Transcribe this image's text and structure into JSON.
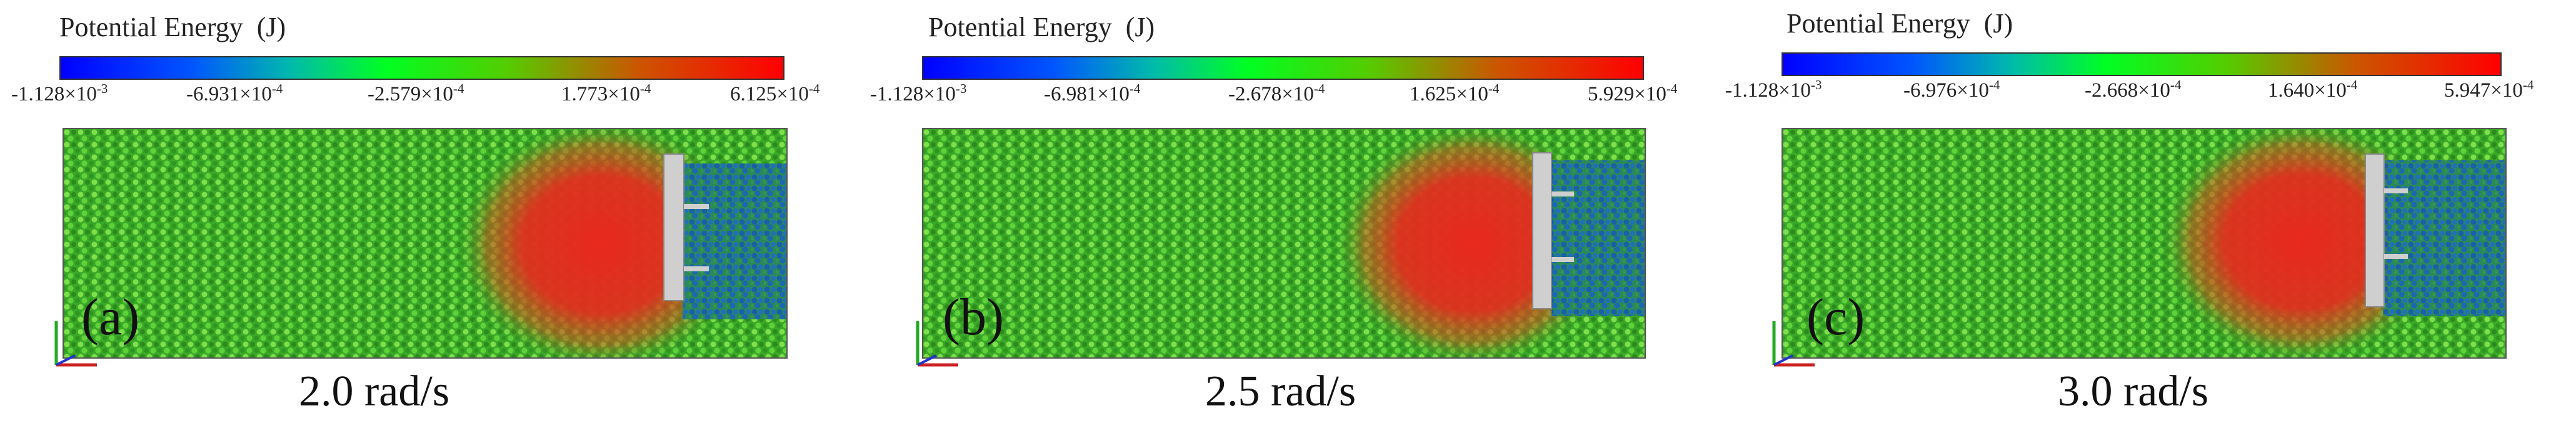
{
  "colorbar_gradient": [
    "#0000ff",
    "#0066ff",
    "#00cc99",
    "#00ff00",
    "#66cc00",
    "#cc6600",
    "#ff0000"
  ],
  "particle_colors": {
    "green": "#2f9e1f",
    "green_light": "#6fdc3a",
    "red": "#e8281e",
    "blue": "#1a5fa8",
    "tool": "#c9c9c9"
  },
  "panels": [
    {
      "title": "Potential Energy  (J)",
      "ticks": [
        "-1.128×10",
        "-6.931×10",
        "-2.579×10",
        "1.773×10",
        "6.125×10"
      ],
      "tick_exps": [
        "-3",
        "-4",
        "-4",
        "-4",
        "-4"
      ],
      "label": "(a)",
      "speed": "2.0 rad/s"
    },
    {
      "title": "Potential Energy  (J)",
      "ticks": [
        "-1.128×10",
        "-6.981×10",
        "-2.678×10",
        "1.625×10",
        "5.929×10"
      ],
      "tick_exps": [
        "-3",
        "-4",
        "-4",
        "-4",
        "-4"
      ],
      "label": "(b)",
      "speed": "2.5 rad/s"
    },
    {
      "title": "Potential Energy  (J)",
      "ticks": [
        "-1.128×10",
        "-6.976×10",
        "-2.668×10",
        "1.640×10",
        "5.947×10"
      ],
      "tick_exps": [
        "-3",
        "-4",
        "-4",
        "-4",
        "-4"
      ],
      "label": "(c)",
      "speed": "3.0 rad/s"
    }
  ]
}
